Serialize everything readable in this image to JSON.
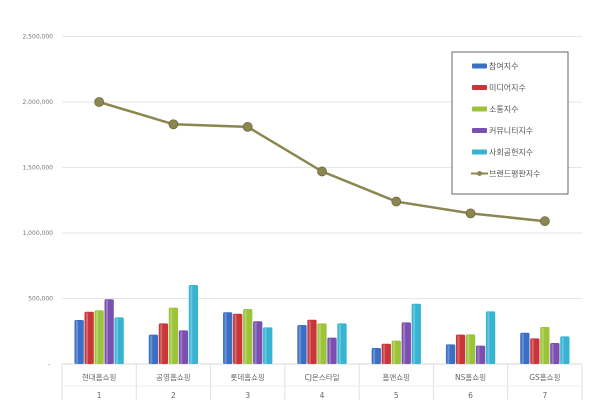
{
  "chart_data": {
    "type": "bar",
    "title": "",
    "xlabel": "",
    "ylabel": "",
    "ylim": [
      0,
      2500000
    ],
    "yticks": [
      "-",
      "500,000",
      "1,000,000",
      "1,500,000",
      "2,000,000",
      "2,500,000"
    ],
    "grid": true,
    "legend_position": "top-right",
    "categories": [
      "현대홈쇼핑",
      "공영홈쇼핑",
      "롯데홈쇼핑",
      "CJ온스타일",
      "홈앤쇼핑",
      "NS홈쇼핑",
      "GS홈쇼핑"
    ],
    "ranks": [
      "1",
      "2",
      "3",
      "4",
      "5",
      "6",
      "7"
    ],
    "series": [
      {
        "name": "참여지수",
        "kind": "bar",
        "color": "#3a6fc4",
        "values": [
          336000,
          224000,
          395000,
          298000,
          122000,
          150000,
          239000
        ]
      },
      {
        "name": "미디어지수",
        "kind": "bar",
        "color": "#c8363a",
        "values": [
          399000,
          310000,
          384000,
          338000,
          155000,
          224000,
          196000
        ]
      },
      {
        "name": "소통지수",
        "kind": "bar",
        "color": "#9cc43a",
        "values": [
          410000,
          430000,
          420000,
          310000,
          178000,
          226000,
          282000
        ]
      },
      {
        "name": "커뮤니티지수",
        "kind": "bar",
        "color": "#7a4fb0",
        "values": [
          494000,
          257000,
          326000,
          201000,
          318000,
          140000,
          160000
        ]
      },
      {
        "name": "사회공헌지수",
        "kind": "bar",
        "color": "#36b4d2",
        "values": [
          356000,
          603000,
          280000,
          310000,
          460000,
          402000,
          211000
        ]
      },
      {
        "name": "브랜드평판지수",
        "kind": "line",
        "color": "#8c8650",
        "values": [
          2000000,
          1830000,
          1810000,
          1470000,
          1240000,
          1150000,
          1090000
        ]
      }
    ]
  }
}
